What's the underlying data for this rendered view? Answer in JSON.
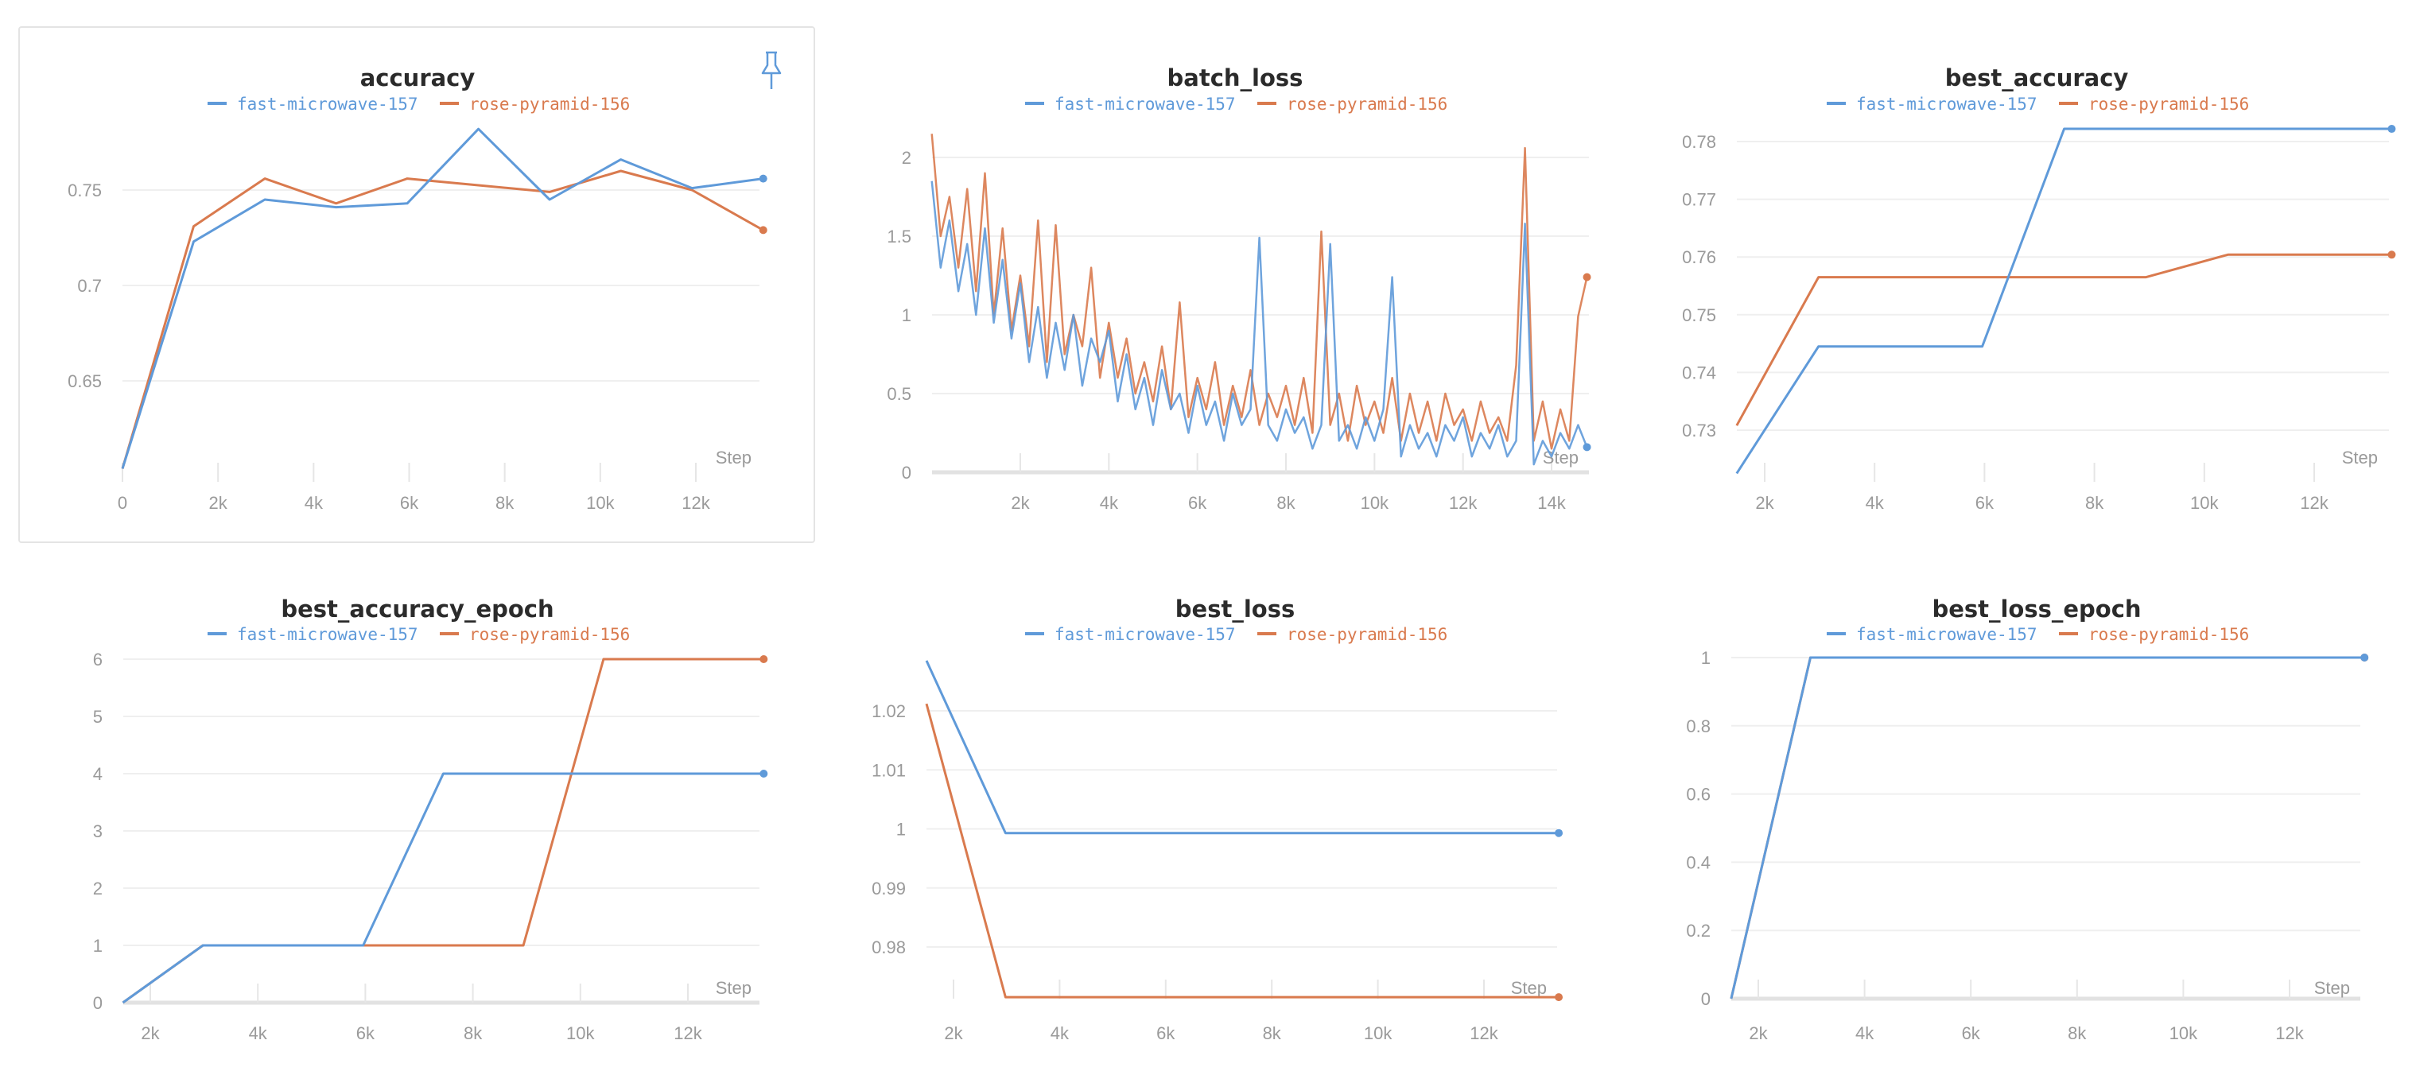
{
  "colors": {
    "fast-microwave-157": "#5f9ad9",
    "rose-pyramid-156": "#d97a4e"
  },
  "x_axis_label": "Step",
  "pin_icon": "pin-icon",
  "chart_data": [
    {
      "type": "line",
      "title": "accuracy",
      "xlabel": "Step",
      "ylabel": "",
      "legend": [
        "fast-microwave-157",
        "rose-pyramid-156"
      ],
      "legend_position": "top-center",
      "x_ticks": [
        0,
        2000,
        4000,
        6000,
        8000,
        10000,
        12000
      ],
      "x_tick_labels": [
        "0",
        "2k",
        "4k",
        "6k",
        "8k",
        "10k",
        "12k"
      ],
      "y_ticks": [
        0.65,
        0.7,
        0.75
      ],
      "y_tick_labels": [
        "0.65",
        "0.7",
        "0.75"
      ],
      "grid": true,
      "pinned": true,
      "series": [
        {
          "name": "fast-microwave-157",
          "x": [
            0,
            1490,
            2980,
            4470,
            5960,
            7450,
            8940,
            10430,
            11920,
            13410
          ],
          "values": [
            0.604,
            0.723,
            0.745,
            0.741,
            0.743,
            0.782,
            0.745,
            0.766,
            0.751,
            0.756
          ]
        },
        {
          "name": "rose-pyramid-156",
          "x": [
            0,
            1490,
            2980,
            4470,
            5960,
            7450,
            8940,
            10430,
            11920,
            13410
          ],
          "values": [
            0.604,
            0.731,
            0.756,
            0.743,
            0.756,
            0.7525,
            0.749,
            0.76,
            0.75,
            0.729
          ]
        }
      ]
    },
    {
      "type": "line",
      "title": "batch_loss",
      "xlabel": "Step",
      "ylabel": "",
      "legend": [
        "fast-microwave-157",
        "rose-pyramid-156"
      ],
      "legend_position": "top-center",
      "x_ticks": [
        2000,
        4000,
        6000,
        8000,
        10000,
        12000,
        14000
      ],
      "x_tick_labels": [
        "2k",
        "4k",
        "6k",
        "8k",
        "10k",
        "12k",
        "14k"
      ],
      "y_ticks": [
        0,
        0.5,
        1,
        1.5,
        2
      ],
      "y_tick_labels": [
        "0",
        "0.5",
        "1",
        "1.5",
        "2"
      ],
      "grid": true,
      "x_step_interval": 200,
      "series": [
        {
          "name": "fast-microwave-157",
          "values": [
            1.85,
            1.3,
            1.6,
            1.15,
            1.45,
            1.0,
            1.55,
            0.95,
            1.35,
            0.85,
            1.2,
            0.7,
            1.05,
            0.6,
            0.95,
            0.65,
            1.0,
            0.55,
            0.85,
            0.7,
            0.9,
            0.45,
            0.75,
            0.4,
            0.6,
            0.3,
            0.65,
            0.4,
            0.5,
            0.25,
            0.55,
            0.3,
            0.45,
            0.2,
            0.5,
            0.3,
            0.4,
            1.49,
            0.3,
            0.2,
            0.4,
            0.25,
            0.35,
            0.15,
            0.3,
            1.45,
            0.2,
            0.3,
            0.15,
            0.35,
            0.2,
            0.4,
            1.24,
            0.1,
            0.3,
            0.15,
            0.25,
            0.1,
            0.3,
            0.2,
            0.35,
            0.1,
            0.25,
            0.15,
            0.3,
            0.1,
            0.2,
            1.58,
            0.05,
            0.2,
            0.1,
            0.25,
            0.15,
            0.3,
            0.16
          ]
        },
        {
          "name": "rose-pyramid-156",
          "values": [
            2.15,
            1.5,
            1.75,
            1.3,
            1.8,
            1.15,
            1.9,
            1.0,
            1.55,
            0.9,
            1.25,
            0.8,
            1.6,
            0.7,
            1.57,
            0.75,
            1.0,
            0.8,
            1.3,
            0.6,
            0.95,
            0.6,
            0.85,
            0.5,
            0.7,
            0.45,
            0.8,
            0.4,
            1.08,
            0.35,
            0.6,
            0.4,
            0.7,
            0.3,
            0.55,
            0.35,
            0.65,
            0.3,
            0.5,
            0.35,
            0.55,
            0.3,
            0.6,
            0.25,
            1.53,
            0.3,
            0.5,
            0.2,
            0.55,
            0.3,
            0.45,
            0.25,
            0.6,
            0.2,
            0.5,
            0.25,
            0.45,
            0.2,
            0.5,
            0.3,
            0.4,
            0.2,
            0.45,
            0.25,
            0.35,
            0.2,
            0.68,
            2.06,
            0.2,
            0.45,
            0.15,
            0.4,
            0.2,
            0.99,
            1.24
          ]
        }
      ]
    },
    {
      "type": "line",
      "title": "best_accuracy",
      "xlabel": "Step",
      "ylabel": "",
      "legend": [
        "fast-microwave-157",
        "rose-pyramid-156"
      ],
      "legend_position": "top-center",
      "x_ticks": [
        2000,
        4000,
        6000,
        8000,
        10000,
        12000
      ],
      "x_tick_labels": [
        "2k",
        "4k",
        "6k",
        "8k",
        "10k",
        "12k"
      ],
      "y_ticks": [
        0.73,
        0.74,
        0.75,
        0.76,
        0.77,
        0.78
      ],
      "y_tick_labels": [
        "0.73",
        "0.74",
        "0.75",
        "0.76",
        "0.77",
        "0.78"
      ],
      "grid": true,
      "series": [
        {
          "name": "fast-microwave-157",
          "x": [
            1490,
            2980,
            5960,
            7450,
            13410
          ],
          "values": [
            0.7225,
            0.7445,
            0.7445,
            0.7822,
            0.7822
          ]
        },
        {
          "name": "rose-pyramid-156",
          "x": [
            1490,
            2980,
            8940,
            10430,
            13410
          ],
          "values": [
            0.7308,
            0.7565,
            0.7565,
            0.7604,
            0.7604
          ]
        }
      ]
    },
    {
      "type": "line",
      "title": "best_accuracy_epoch",
      "xlabel": "Step",
      "ylabel": "",
      "legend": [
        "fast-microwave-157",
        "rose-pyramid-156"
      ],
      "legend_position": "top-center",
      "x_ticks": [
        2000,
        4000,
        6000,
        8000,
        10000,
        12000
      ],
      "x_tick_labels": [
        "2k",
        "4k",
        "6k",
        "8k",
        "10k",
        "12k"
      ],
      "y_ticks": [
        0,
        1,
        2,
        3,
        4,
        5,
        6
      ],
      "y_tick_labels": [
        "0",
        "1",
        "2",
        "3",
        "4",
        "5",
        "6"
      ],
      "grid": true,
      "series": [
        {
          "name": "fast-microwave-157",
          "x": [
            1490,
            2980,
            5960,
            7450,
            13410
          ],
          "values": [
            0,
            1,
            1,
            4,
            4
          ]
        },
        {
          "name": "rose-pyramid-156",
          "x": [
            1490,
            2980,
            8940,
            10430,
            13410
          ],
          "values": [
            0,
            1,
            1,
            6,
            6
          ]
        }
      ]
    },
    {
      "type": "line",
      "title": "best_loss",
      "xlabel": "Step",
      "ylabel": "",
      "legend": [
        "fast-microwave-157",
        "rose-pyramid-156"
      ],
      "legend_position": "top-center",
      "x_ticks": [
        2000,
        4000,
        6000,
        8000,
        10000,
        12000
      ],
      "x_tick_labels": [
        "2k",
        "4k",
        "6k",
        "8k",
        "10k",
        "12k"
      ],
      "y_ticks": [
        0.98,
        0.99,
        1,
        1.01,
        1.02
      ],
      "y_tick_labels": [
        "0.98",
        "0.99",
        "1",
        "1.01",
        "1.02"
      ],
      "grid": true,
      "series": [
        {
          "name": "fast-microwave-157",
          "x": [
            1490,
            2980,
            13410
          ],
          "values": [
            1.0285,
            0.9993,
            0.9993
          ]
        },
        {
          "name": "rose-pyramid-156",
          "x": [
            1490,
            2980,
            13410
          ],
          "values": [
            1.0212,
            0.9715,
            0.9715
          ]
        }
      ]
    },
    {
      "type": "line",
      "title": "best_loss_epoch",
      "xlabel": "Step",
      "ylabel": "",
      "legend": [
        "fast-microwave-157",
        "rose-pyramid-156"
      ],
      "legend_position": "top-center",
      "x_ticks": [
        2000,
        4000,
        6000,
        8000,
        10000,
        12000
      ],
      "x_tick_labels": [
        "2k",
        "4k",
        "6k",
        "8k",
        "10k",
        "12k"
      ],
      "y_ticks": [
        0,
        0.2,
        0.4,
        0.6,
        0.8,
        1
      ],
      "y_tick_labels": [
        "0",
        "0.2",
        "0.4",
        "0.6",
        "0.8",
        "1"
      ],
      "grid": true,
      "series": [
        {
          "name": "fast-microwave-157",
          "x": [
            1490,
            2980,
            13410
          ],
          "values": [
            0,
            1,
            1
          ]
        },
        {
          "name": "rose-pyramid-156",
          "x": [
            1490,
            2980,
            13410
          ],
          "values": [
            0,
            1,
            1
          ]
        }
      ]
    }
  ]
}
